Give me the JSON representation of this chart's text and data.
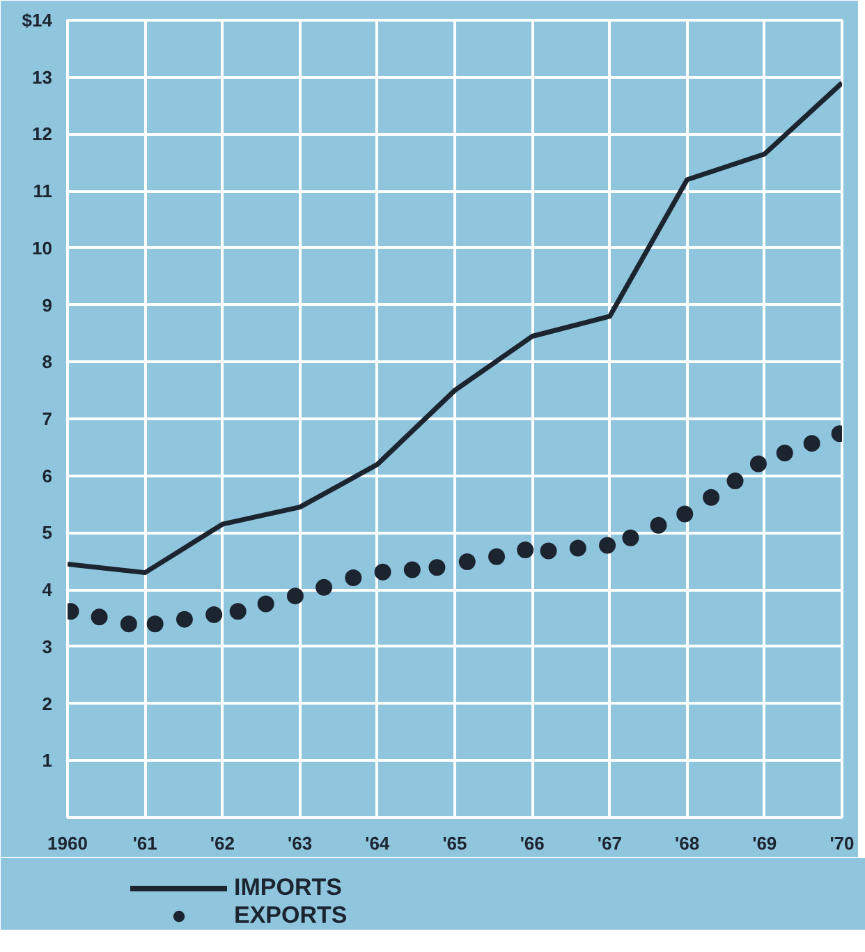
{
  "chart_data": {
    "type": "line",
    "xlim": [
      1960,
      1970
    ],
    "ylim": [
      0,
      14
    ],
    "xticks": [
      1960,
      {
        "value": 1961,
        "label": "'61"
      },
      {
        "value": 1962,
        "label": "'62"
      },
      {
        "value": 1963,
        "label": "'63"
      },
      {
        "value": 1964,
        "label": "'64"
      },
      {
        "value": 1965,
        "label": "'65"
      },
      {
        "value": 1966,
        "label": "'66"
      },
      {
        "value": 1967,
        "label": "'67"
      },
      {
        "value": 1968,
        "label": "'68"
      },
      {
        "value": 1969,
        "label": "'69"
      },
      {
        "value": 1970,
        "label": "'70"
      }
    ],
    "yticks": [
      1,
      2,
      3,
      4,
      5,
      6,
      7,
      8,
      9,
      10,
      11,
      12,
      13,
      {
        "value": 14,
        "label": "$14"
      }
    ],
    "grid": true,
    "legend": "bottom left",
    "series": [
      {
        "name": "IMPORTS",
        "color": "#1c2430",
        "marker": "none",
        "line_style": "solid",
        "x": [
          1960,
          1961,
          1962,
          1963,
          1964,
          1965,
          1966,
          1967,
          1968,
          1969,
          1970
        ],
        "values": [
          4.45,
          4.3,
          5.15,
          5.45,
          6.2,
          7.5,
          8.45,
          8.8,
          11.2,
          11.65,
          12.9
        ]
      },
      {
        "name": "EXPORTS",
        "color": "#1c2430",
        "type": "scatter",
        "marker": "circle",
        "x": [
          1960.04,
          1960.41,
          1960.79,
          1961.13,
          1961.51,
          1961.89,
          1962.2,
          1962.56,
          1962.94,
          1963.31,
          1963.69,
          1964.07,
          1964.45,
          1964.77,
          1965.16,
          1965.54,
          1965.91,
          1966.21,
          1966.59,
          1966.97,
          1967.27,
          1967.63,
          1967.97,
          1968.31,
          1968.62,
          1968.92,
          1969.26,
          1969.61,
          1969.97
        ],
        "values": [
          3.62,
          3.52,
          3.4,
          3.4,
          3.48,
          3.56,
          3.62,
          3.75,
          3.89,
          4.04,
          4.21,
          4.31,
          4.35,
          4.39,
          4.49,
          4.58,
          4.7,
          4.68,
          4.73,
          4.78,
          4.91,
          5.13,
          5.33,
          5.62,
          5.91,
          6.21,
          6.4,
          6.57,
          6.74
        ]
      }
    ]
  }
}
